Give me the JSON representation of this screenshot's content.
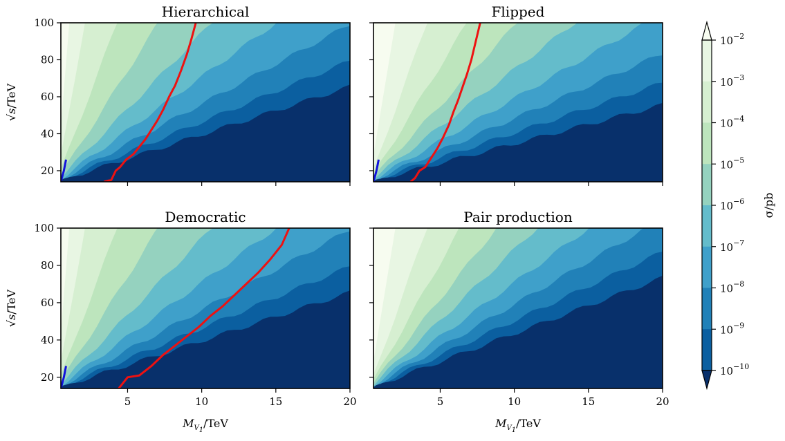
{
  "figure": {
    "colorbar_label": "σ/pb",
    "colorbar_levels": [
      {
        "label": "10",
        "exp": "−2"
      },
      {
        "label": "10",
        "exp": "−3"
      },
      {
        "label": "10",
        "exp": "−4"
      },
      {
        "label": "10",
        "exp": "−5"
      },
      {
        "label": "10",
        "exp": "−6"
      },
      {
        "label": "10",
        "exp": "−7"
      },
      {
        "label": "10",
        "exp": "−8"
      },
      {
        "label": "10",
        "exp": "−9"
      },
      {
        "label": "10",
        "exp": "−10"
      }
    ],
    "colormap": [
      "#08306b",
      "#0b5fa0",
      "#2181b8",
      "#3fa0ca",
      "#64bccb",
      "#95d2bf",
      "#bde5bd",
      "#d6efd1",
      "#e8f6e3",
      "#f7fcf0"
    ],
    "contour_colors": {
      "red": "#ee1111",
      "blue": "#1111dd"
    },
    "x_tick_labels": [
      "5",
      "10",
      "15",
      "20"
    ],
    "y_tick_labels": [
      "20",
      "40",
      "60",
      "80",
      "100"
    ],
    "x_axis_label": {
      "main": "M",
      "sub": "V",
      "subsub": "1",
      "rest": "/TeV"
    },
    "y_axis_label": {
      "main": "√s",
      "rest": "/TeV"
    }
  },
  "chart_data": [
    {
      "type": "heatmap",
      "title": "Hierarchical",
      "xlim": [
        0.5,
        20
      ],
      "ylim": [
        14,
        100
      ],
      "z_scale": "log",
      "z_levels": [
        -10,
        -9,
        -8,
        -7,
        -6,
        -5,
        -4,
        -3,
        -2
      ],
      "contour_slopes_dsqrt_s_per_M": [
        2.6,
        3.3,
        4.3,
        5.8,
        8.2,
        12.5,
        21,
        45
      ],
      "red_line": {
        "x": [
          3.4,
          3.9,
          4.2,
          4.5,
          4.9,
          5.4,
          5.8,
          6.2,
          6.6,
          7.0,
          7.4,
          7.8,
          8.2,
          8.6,
          9.0,
          9.3,
          9.6
        ],
        "y": [
          14,
          15,
          20,
          22,
          26,
          29,
          33,
          37,
          42,
          47,
          53,
          60,
          66,
          74,
          83,
          91,
          100
        ]
      },
      "blue_line": {
        "x": [
          0.5,
          0.7,
          0.85
        ],
        "y": [
          14,
          20,
          26
        ]
      }
    },
    {
      "type": "heatmap",
      "title": "Flipped",
      "xlim": [
        0.5,
        20
      ],
      "ylim": [
        14,
        100
      ],
      "z_scale": "log",
      "z_levels": [
        -10,
        -9,
        -8,
        -7,
        -6,
        -5,
        -4,
        -3,
        -2
      ],
      "contour_slopes_dsqrt_s_per_M": [
        2.1,
        2.7,
        3.5,
        4.6,
        6.2,
        8.6,
        13,
        22
      ],
      "red_line": {
        "x": [
          3.0,
          3.3,
          3.6,
          4.0,
          4.4,
          4.8,
          5.2,
          5.6,
          5.9,
          6.2,
          6.5,
          6.8,
          7.1,
          7.4,
          7.7
        ],
        "y": [
          14,
          16,
          20,
          22,
          27,
          32,
          38,
          45,
          52,
          58,
          65,
          72,
          80,
          90,
          100
        ]
      },
      "blue_line": {
        "x": [
          0.5,
          0.7,
          0.85
        ],
        "y": [
          14,
          20,
          26
        ]
      }
    },
    {
      "type": "heatmap",
      "title": "Democratic",
      "xlim": [
        0.5,
        20
      ],
      "ylim": [
        14,
        100
      ],
      "z_scale": "log",
      "z_levels": [
        -10,
        -9,
        -8,
        -7,
        -6,
        -5,
        -4,
        -3,
        -2
      ],
      "contour_slopes_dsqrt_s_per_M": [
        2.6,
        3.3,
        4.3,
        5.8,
        8.2,
        12.5,
        21,
        45
      ],
      "red_line": {
        "x": [
          4.4,
          5.0,
          5.8,
          6.6,
          7.4,
          8.2,
          9.0,
          9.8,
          10.6,
          11.4,
          12.2,
          13.0,
          13.8,
          14.6,
          15.4,
          15.9
        ],
        "y": [
          14,
          20,
          21,
          26,
          32,
          37,
          42,
          47,
          53,
          58,
          64,
          70,
          76,
          83,
          91,
          100
        ]
      },
      "blue_line": {
        "x": [
          0.5,
          0.7,
          0.85
        ],
        "y": [
          14,
          20,
          26
        ]
      }
    },
    {
      "type": "heatmap",
      "title": "Pair production",
      "xlim": [
        0.5,
        20
      ],
      "ylim": [
        14,
        100
      ],
      "z_scale": "log",
      "z_levels": [
        -10,
        -9,
        -8,
        -7,
        -6,
        -5,
        -4,
        -3,
        -2
      ],
      "contour_slopes_dsqrt_s_per_M": [
        3.0,
        3.7,
        4.6,
        5.8,
        7.6,
        10.0,
        14,
        22
      ]
    }
  ]
}
